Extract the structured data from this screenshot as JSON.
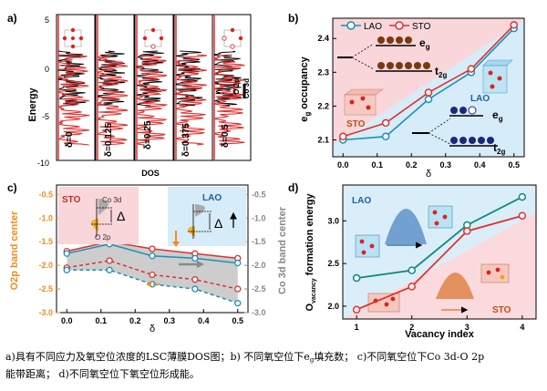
{
  "panels": {
    "a": {
      "label": "a)",
      "ylabel": "Energy",
      "xlabel": "DOS",
      "yticks": [
        "5",
        "0",
        "-5",
        "-10"
      ],
      "deltas": [
        "δ=0",
        "δ=0.125",
        "δ=0.25",
        "δ=0.375",
        "δ=0.5"
      ],
      "legend": [
        "O 2p",
        "Co 3d"
      ]
    },
    "b": {
      "label": "b)",
      "ylabel": "e",
      "ylabel_sub": "g",
      "ylabel_rest": " occupancy",
      "xlabel": "δ",
      "legend": [
        "LAO",
        "STO"
      ],
      "region_labels": [
        "STO",
        "LAO"
      ],
      "orbital_labels": [
        "e",
        "g",
        "t",
        "2g",
        "e",
        "g",
        "t",
        "2g"
      ]
    },
    "c": {
      "label": "c)",
      "ylabel_left": "O2p band center",
      "ylabel_right": "Co 3d band center",
      "xlabel": "δ",
      "inset_sto": "STO",
      "inset_lao": "LAO",
      "inset_co3d": "Co 3d",
      "inset_o2p": "O 2p",
      "delta_symbol": "Δ"
    },
    "d": {
      "label": "d)",
      "ylabel": "O",
      "ylabel_sub": "vacancy",
      "ylabel_rest": " formation energy",
      "xlabel": "Vacancy index",
      "region_labels": [
        "LAO",
        "STO"
      ]
    }
  },
  "chart_data": [
    {
      "panel": "b",
      "type": "line",
      "x": [
        0.0,
        0.125,
        0.25,
        0.375,
        0.5
      ],
      "series": [
        {
          "name": "LAO",
          "values": [
            2.1,
            2.11,
            2.22,
            2.3,
            2.43
          ]
        },
        {
          "name": "STO",
          "values": [
            2.11,
            2.15,
            2.24,
            2.31,
            2.44
          ]
        }
      ],
      "xticks": [
        "0.0",
        "0.1",
        "0.2",
        "0.3",
        "0.4",
        "0.5"
      ],
      "yticks": [
        "2.1",
        "2.2",
        "2.3",
        "2.4"
      ],
      "xlim": [
        -0.03,
        0.53
      ],
      "ylim": [
        2.05,
        2.46
      ],
      "colors": {
        "LAO": "#1b8fb4",
        "STO": "#e03030"
      }
    },
    {
      "panel": "c",
      "type": "line",
      "x": [
        0.0,
        0.125,
        0.25,
        0.375,
        0.5
      ],
      "series": [
        {
          "name": "Co 3d (STO)",
          "axis": "right",
          "values": [
            -1.7,
            -1.5,
            -1.65,
            -1.75,
            -1.85
          ]
        },
        {
          "name": "Co 3d (LAO)",
          "axis": "right",
          "values": [
            -1.75,
            -1.55,
            -1.8,
            -1.85,
            -1.95
          ]
        },
        {
          "name": "O 2p (STO)",
          "axis": "left",
          "values": [
            -2.05,
            -1.9,
            -2.2,
            -2.3,
            -2.5
          ]
        },
        {
          "name": "O 2p (LAO)",
          "axis": "left",
          "values": [
            -2.1,
            -2.1,
            -2.4,
            -2.5,
            -2.8
          ]
        }
      ],
      "xticks": [
        "0.0",
        "0.1",
        "0.2",
        "0.3",
        "0.4",
        "0.5"
      ],
      "yticks_left": [
        "-0.5",
        "-1.0",
        "-1.5",
        "-2.0",
        "-2.5",
        "-3.0"
      ],
      "yticks_right": [
        "-0.5",
        "-1.0",
        "-1.5",
        "-2.0",
        "-2.5",
        "-3.0"
      ],
      "xlim": [
        -0.03,
        0.53
      ],
      "ylim": [
        -3.0,
        -0.3
      ],
      "colors": {
        "STO": "#e03030",
        "LAO": "#1b8fb4",
        "left_axis": "#f08c1e",
        "right_axis": "#888888"
      }
    },
    {
      "panel": "d",
      "type": "line",
      "x": [
        1,
        2,
        3,
        4
      ],
      "series": [
        {
          "name": "LAO",
          "values": [
            2.33,
            2.42,
            2.95,
            3.28
          ]
        },
        {
          "name": "STO",
          "values": [
            1.96,
            2.23,
            2.88,
            3.06
          ]
        }
      ],
      "xticks": [
        "1",
        "2",
        "3",
        "4"
      ],
      "yticks": [
        "2.0",
        "2.5",
        "3.0"
      ],
      "xlim": [
        0.75,
        4.25
      ],
      "ylim": [
        1.85,
        3.42
      ],
      "colors": {
        "LAO": "#0e8a7a",
        "STO": "#e03030"
      }
    }
  ],
  "caption": {
    "line1_a": "a)具有不同应力及氧空位浓度的LSC薄膜DOS图；b) 不同氧空位下e",
    "line1_sub": "g",
    "line1_b": "填充数；  c)不同氧空位下Co 3d-O 2p",
    "line2": "能带距离；  d)不同氧空位下氧空位形成能。"
  }
}
